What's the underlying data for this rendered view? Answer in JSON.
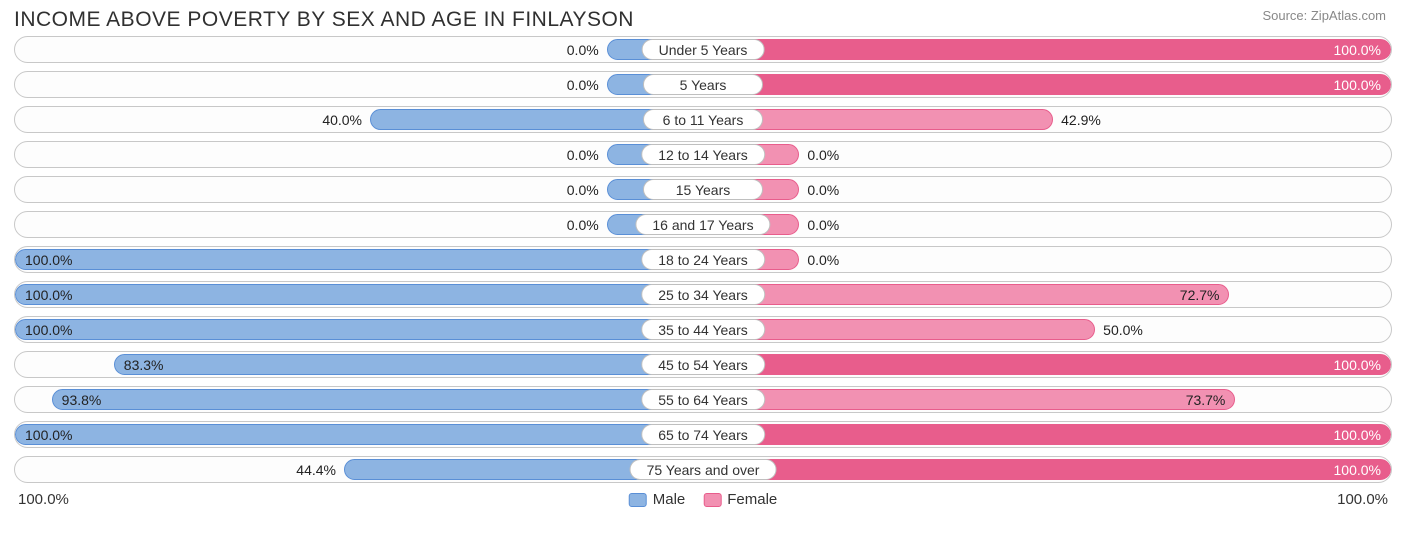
{
  "title": "INCOME ABOVE POVERTY BY SEX AND AGE IN FINLAYSON",
  "source": "Source: ZipAtlas.com",
  "colors": {
    "male_fill": "#8db4e2",
    "male_border": "#5a8fd6",
    "female_fill": "#f291b2",
    "female_border": "#e85d8c",
    "track_border": "#c8c8c8",
    "track_bg": "#fdfdfd",
    "text": "#303030",
    "source_text": "#888888"
  },
  "min_bar_pct": 14,
  "rows": [
    {
      "category": "Under 5 Years",
      "male": 0.0,
      "female": 100.0,
      "female_intense": true
    },
    {
      "category": "5 Years",
      "male": 0.0,
      "female": 100.0,
      "female_intense": true
    },
    {
      "category": "6 to 11 Years",
      "male": 40.0,
      "female": 42.9
    },
    {
      "category": "12 to 14 Years",
      "male": 0.0,
      "female": 0.0
    },
    {
      "category": "15 Years",
      "male": 0.0,
      "female": 0.0
    },
    {
      "category": "16 and 17 Years",
      "male": 0.0,
      "female": 0.0
    },
    {
      "category": "18 to 24 Years",
      "male": 100.0,
      "female": 0.0
    },
    {
      "category": "25 to 34 Years",
      "male": 100.0,
      "female": 72.7
    },
    {
      "category": "35 to 44 Years",
      "male": 100.0,
      "female": 50.0
    },
    {
      "category": "45 to 54 Years",
      "male": 83.3,
      "female": 100.0,
      "female_intense": true
    },
    {
      "category": "55 to 64 Years",
      "male": 93.8,
      "female": 73.7
    },
    {
      "category": "65 to 74 Years",
      "male": 100.0,
      "female": 100.0,
      "female_intense": true
    },
    {
      "category": "75 Years and over",
      "male": 44.4,
      "female": 100.0,
      "female_intense": true
    }
  ],
  "axis": {
    "left": "100.0%",
    "right": "100.0%"
  },
  "legend": {
    "male": "Male",
    "female": "Female"
  },
  "label_fontsize": 14,
  "title_fontsize": 21
}
